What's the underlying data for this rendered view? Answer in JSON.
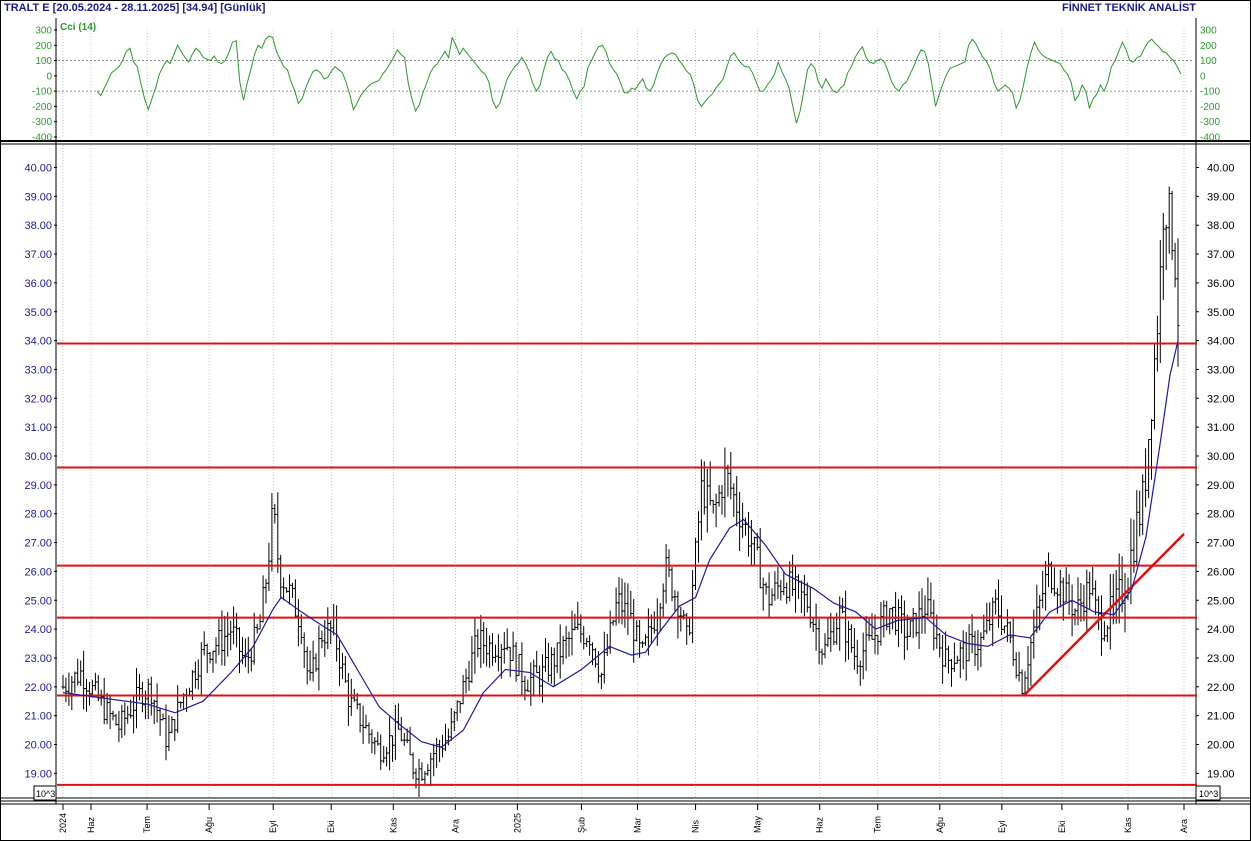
{
  "header": {
    "title": "TRALT E  [20.05.2024 - 28.11.2025]  [34.94]  [Günlük]",
    "vendor": "FİNNET TEKNİK ANALİST"
  },
  "colors": {
    "bars": "#000000",
    "ma": "#1a1aa8",
    "cci": "#2a9a2a",
    "levels": "#e01010",
    "trend": "#e01010",
    "axis_text": "#1b1b8f",
    "grid": "#9a9a9a"
  },
  "chart_data": [
    {
      "type": "line",
      "name": "cci_panel",
      "legend": "Cci (14)",
      "y_ticks": [
        "300",
        "200",
        "100",
        "0",
        "-100",
        "-200",
        "-300",
        "-400"
      ],
      "y_ticks_right": [
        "300",
        "200",
        "100",
        "0",
        "-100",
        "-200",
        "-300",
        "-400"
      ],
      "ylim": [
        -400,
        300
      ],
      "reference_lines": [
        100,
        -100
      ],
      "grid": true,
      "series": [
        {
          "values": [
            -100,
            -130,
            -80,
            -30,
            20,
            40,
            60,
            100,
            160,
            180,
            90,
            60,
            -50,
            -150,
            -220,
            -150,
            -80,
            10,
            60,
            100,
            80,
            140,
            200,
            160,
            120,
            90,
            140,
            180,
            160,
            120,
            110,
            100,
            130,
            90,
            80,
            100,
            150,
            220,
            230,
            -40,
            -160,
            -50,
            40,
            140,
            200,
            180,
            240,
            260,
            250,
            160,
            110,
            60,
            40,
            -40,
            -100,
            -180,
            -150,
            -80,
            -20,
            30,
            40,
            20,
            -20,
            -10,
            30,
            60,
            40,
            20,
            -40,
            -120,
            -220,
            -180,
            -130,
            -100,
            -70,
            -50,
            -40,
            -30,
            10,
            40,
            80,
            120,
            170,
            140,
            120,
            -50,
            -150,
            -230,
            -190,
            -110,
            -50,
            20,
            60,
            80,
            120,
            160,
            120,
            250,
            200,
            140,
            180,
            150,
            120,
            90,
            60,
            30,
            10,
            -40,
            -160,
            -210,
            -180,
            -100,
            -20,
            20,
            60,
            80,
            120,
            80,
            30,
            -50,
            -100,
            -60,
            40,
            120,
            160,
            110,
            100,
            40,
            20,
            -30,
            -100,
            -150,
            -100,
            -70,
            50,
            100,
            150,
            190,
            200,
            160,
            80,
            40,
            10,
            -50,
            -110,
            -110,
            -80,
            -90,
            -50,
            -20,
            -80,
            -100,
            -60,
            20,
            80,
            120,
            140,
            150,
            140,
            100,
            70,
            30,
            10,
            -60,
            -160,
            -200,
            -170,
            -140,
            -120,
            -80,
            -50,
            -20,
            60,
            130,
            150,
            110,
            80,
            60,
            60,
            20,
            -40,
            -100,
            -100,
            -60,
            -30,
            10,
            90,
            30,
            -20,
            -80,
            -200,
            -310,
            -230,
            -100,
            40,
            80,
            50,
            -40,
            -80,
            -20,
            -60,
            -100,
            -110,
            -80,
            -60,
            20,
            60,
            120,
            160,
            190,
            120,
            90,
            80,
            100,
            110,
            90,
            30,
            -40,
            -80,
            -100,
            -60,
            -40,
            10,
            60,
            120,
            170,
            160,
            80,
            -60,
            -200,
            -120,
            -50,
            10,
            50,
            60,
            70,
            80,
            90,
            200,
            240,
            210,
            160,
            120,
            90,
            40,
            -50,
            -100,
            -80,
            -60,
            -80,
            -110,
            -210,
            -160,
            -60,
            60,
            150,
            220,
            170,
            140,
            120,
            110,
            100,
            90,
            80,
            40,
            10,
            -40,
            -160,
            -130,
            -60,
            -100,
            -210,
            -150,
            -120,
            -60,
            -100,
            -40,
            60,
            100,
            160,
            220,
            170,
            100,
            90,
            120,
            130,
            180,
            220,
            240,
            210,
            190,
            160,
            150,
            120,
            100,
            60,
            10
          ]
        }
      ]
    },
    {
      "type": "bar",
      "name": "price_panel",
      "subtype": "ohlc-bars",
      "x_axis": {
        "start": "20.05.2024",
        "end": "28.11.2025",
        "month_labels": [
          "2024",
          "Haz",
          "Tem",
          "Ağu",
          "Eyl",
          "Eki",
          "Kas",
          "Ara",
          "2025",
          "Şub",
          "Mar",
          "Nis",
          "May",
          "Haz",
          "Tem",
          "Ağu",
          "Eyl",
          "Eki",
          "Kas",
          "Ara"
        ],
        "month_label_dates": [
          "2024-05-20",
          "2024-06-03",
          "2024-07-01",
          "2024-08-01",
          "2024-09-02",
          "2024-10-01",
          "2024-11-01",
          "2024-12-02",
          "2025-01-02",
          "2025-02-03",
          "2025-03-03",
          "2025-04-01",
          "2025-05-02",
          "2025-06-02",
          "2025-07-01",
          "2025-08-01",
          "2025-09-01",
          "2025-10-01",
          "2025-11-03",
          "2025-12-01"
        ]
      },
      "y_ticks": [
        "40.00",
        "39.00",
        "38.00",
        "37.00",
        "36.00",
        "35.00",
        "34.00",
        "33.00",
        "32.00",
        "31.00",
        "30.00",
        "29.00",
        "28.00",
        "27.00",
        "26.00",
        "25.00",
        "24.00",
        "23.00",
        "22.00",
        "21.00",
        "20.00",
        "19.00"
      ],
      "y_ticks_right": [
        "40.00",
        "39.00",
        "38.00",
        "37.00",
        "36.00",
        "35.00",
        "34.00",
        "33.00",
        "32.00",
        "31.00",
        "30.00",
        "29.00",
        "28.00",
        "27.00",
        "26.00",
        "25.00",
        "24.00",
        "23.00",
        "22.00",
        "21.00",
        "20.00",
        "19.00"
      ],
      "ylim": [
        18.45,
        40.8
      ],
      "scale_note": "10^3",
      "last_close": 34.94,
      "grid": true,
      "horizontal_levels": [
        33.9,
        29.6,
        26.2,
        24.4,
        21.7,
        18.6
      ],
      "trend_line": [
        {
          "date": "2025-09-12",
          "y": 21.7
        },
        {
          "date": "2025-12-01",
          "y": 27.3
        }
      ],
      "moving_average": [
        {
          "date": "2024-05-20",
          "y": 21.8
        },
        {
          "date": "2024-06-10",
          "y": 21.6
        },
        {
          "date": "2024-07-01",
          "y": 21.4
        },
        {
          "date": "2024-07-15",
          "y": 21.1
        },
        {
          "date": "2024-07-29",
          "y": 21.5
        },
        {
          "date": "2024-08-12",
          "y": 22.5
        },
        {
          "date": "2024-08-23",
          "y": 23.4
        },
        {
          "date": "2024-09-02",
          "y": 24.7
        },
        {
          "date": "2024-09-06",
          "y": 25.1
        },
        {
          "date": "2024-09-16",
          "y": 24.6
        },
        {
          "date": "2024-09-27",
          "y": 24.1
        },
        {
          "date": "2024-10-04",
          "y": 23.8
        },
        {
          "date": "2024-10-14",
          "y": 22.6
        },
        {
          "date": "2024-10-25",
          "y": 21.3
        },
        {
          "date": "2024-11-04",
          "y": 20.7
        },
        {
          "date": "2024-11-15",
          "y": 20.1
        },
        {
          "date": "2024-11-25",
          "y": 19.9
        },
        {
          "date": "2024-12-06",
          "y": 20.5
        },
        {
          "date": "2024-12-16",
          "y": 21.8
        },
        {
          "date": "2024-12-27",
          "y": 22.6
        },
        {
          "date": "2025-01-08",
          "y": 22.5
        },
        {
          "date": "2025-01-20",
          "y": 22.0
        },
        {
          "date": "2025-02-03",
          "y": 22.6
        },
        {
          "date": "2025-02-17",
          "y": 23.4
        },
        {
          "date": "2025-02-28",
          "y": 23.1
        },
        {
          "date": "2025-03-07",
          "y": 23.2
        },
        {
          "date": "2025-03-14",
          "y": 23.9
        },
        {
          "date": "2025-03-24",
          "y": 24.8
        },
        {
          "date": "2025-04-01",
          "y": 25.1
        },
        {
          "date": "2025-04-08",
          "y": 26.4
        },
        {
          "date": "2025-04-18",
          "y": 27.5
        },
        {
          "date": "2025-04-25",
          "y": 27.8
        },
        {
          "date": "2025-05-06",
          "y": 26.9
        },
        {
          "date": "2025-05-16",
          "y": 25.9
        },
        {
          "date": "2025-05-30",
          "y": 25.4
        },
        {
          "date": "2025-06-09",
          "y": 24.9
        },
        {
          "date": "2025-06-20",
          "y": 24.6
        },
        {
          "date": "2025-06-30",
          "y": 24.0
        },
        {
          "date": "2025-07-11",
          "y": 24.3
        },
        {
          "date": "2025-07-25",
          "y": 24.4
        },
        {
          "date": "2025-08-04",
          "y": 23.8
        },
        {
          "date": "2025-08-15",
          "y": 23.5
        },
        {
          "date": "2025-08-25",
          "y": 23.4
        },
        {
          "date": "2025-09-05",
          "y": 23.8
        },
        {
          "date": "2025-09-15",
          "y": 23.7
        },
        {
          "date": "2025-09-25",
          "y": 24.6
        },
        {
          "date": "2025-10-06",
          "y": 25.0
        },
        {
          "date": "2025-10-17",
          "y": 24.6
        },
        {
          "date": "2025-10-27",
          "y": 24.5
        },
        {
          "date": "2025-11-05",
          "y": 25.4
        },
        {
          "date": "2025-11-12",
          "y": 27.2
        },
        {
          "date": "2025-11-19",
          "y": 30.4
        },
        {
          "date": "2025-11-24",
          "y": 32.8
        },
        {
          "date": "2025-11-28",
          "y": 34.0
        }
      ],
      "price_path": [
        {
          "date": "2024-05-20",
          "y": 22.0
        },
        {
          "date": "2024-05-29",
          "y": 22.5
        },
        {
          "date": "2024-06-10",
          "y": 21.2
        },
        {
          "date": "2024-06-17",
          "y": 20.6
        },
        {
          "date": "2024-06-28",
          "y": 21.8
        },
        {
          "date": "2024-07-03",
          "y": 21.9
        },
        {
          "date": "2024-07-11",
          "y": 20.1
        },
        {
          "date": "2024-07-19",
          "y": 21.7
        },
        {
          "date": "2024-07-29",
          "y": 23.2
        },
        {
          "date": "2024-08-07",
          "y": 23.6
        },
        {
          "date": "2024-08-12",
          "y": 24.0
        },
        {
          "date": "2024-08-19",
          "y": 22.8
        },
        {
          "date": "2024-08-26",
          "y": 24.0
        },
        {
          "date": "2024-08-30",
          "y": 26.0
        },
        {
          "date": "2024-09-02",
          "y": 28.2
        },
        {
          "date": "2024-09-05",
          "y": 26.0
        },
        {
          "date": "2024-09-10",
          "y": 25.3
        },
        {
          "date": "2024-09-16",
          "y": 24.2
        },
        {
          "date": "2024-09-20",
          "y": 22.0
        },
        {
          "date": "2024-09-26",
          "y": 23.8
        },
        {
          "date": "2024-10-02",
          "y": 24.0
        },
        {
          "date": "2024-10-10",
          "y": 21.5
        },
        {
          "date": "2024-10-18",
          "y": 20.6
        },
        {
          "date": "2024-10-25",
          "y": 19.8
        },
        {
          "date": "2024-11-04",
          "y": 20.5
        },
        {
          "date": "2024-11-11",
          "y": 19.2
        },
        {
          "date": "2024-11-15",
          "y": 19.1
        },
        {
          "date": "2024-11-22",
          "y": 19.8
        },
        {
          "date": "2024-11-29",
          "y": 20.3
        },
        {
          "date": "2024-12-06",
          "y": 22.0
        },
        {
          "date": "2024-12-13",
          "y": 23.6
        },
        {
          "date": "2024-12-20",
          "y": 23.4
        },
        {
          "date": "2024-12-27",
          "y": 23.6
        },
        {
          "date": "2025-01-06",
          "y": 22.2
        },
        {
          "date": "2025-01-14",
          "y": 22.4
        },
        {
          "date": "2025-01-22",
          "y": 23.1
        },
        {
          "date": "2025-01-31",
          "y": 23.9
        },
        {
          "date": "2025-02-07",
          "y": 23.8
        },
        {
          "date": "2025-02-13",
          "y": 22.4
        },
        {
          "date": "2025-02-21",
          "y": 25.0
        },
        {
          "date": "2025-02-28",
          "y": 24.3
        },
        {
          "date": "2025-03-05",
          "y": 23.0
        },
        {
          "date": "2025-03-12",
          "y": 24.5
        },
        {
          "date": "2025-03-17",
          "y": 26.1
        },
        {
          "date": "2025-03-24",
          "y": 24.8
        },
        {
          "date": "2025-03-28",
          "y": 23.5
        },
        {
          "date": "2025-04-04",
          "y": 28.9
        },
        {
          "date": "2025-04-10",
          "y": 28.0
        },
        {
          "date": "2025-04-16",
          "y": 29.4
        },
        {
          "date": "2025-04-23",
          "y": 28.0
        },
        {
          "date": "2025-04-30",
          "y": 26.8
        },
        {
          "date": "2025-05-07",
          "y": 25.0
        },
        {
          "date": "2025-05-15",
          "y": 25.7
        },
        {
          "date": "2025-05-27",
          "y": 24.9
        },
        {
          "date": "2025-06-04",
          "y": 23.2
        },
        {
          "date": "2025-06-12",
          "y": 24.5
        },
        {
          "date": "2025-06-20",
          "y": 23.0
        },
        {
          "date": "2025-06-27",
          "y": 23.5
        },
        {
          "date": "2025-07-07",
          "y": 24.7
        },
        {
          "date": "2025-07-16",
          "y": 23.8
        },
        {
          "date": "2025-07-25",
          "y": 24.8
        },
        {
          "date": "2025-08-04",
          "y": 22.9
        },
        {
          "date": "2025-08-12",
          "y": 23.2
        },
        {
          "date": "2025-08-22",
          "y": 23.6
        },
        {
          "date": "2025-08-29",
          "y": 24.8
        },
        {
          "date": "2025-09-05",
          "y": 23.7
        },
        {
          "date": "2025-09-11",
          "y": 22.1
        },
        {
          "date": "2025-09-18",
          "y": 24.3
        },
        {
          "date": "2025-09-24",
          "y": 26.0
        },
        {
          "date": "2025-10-01",
          "y": 25.4
        },
        {
          "date": "2025-10-08",
          "y": 24.6
        },
        {
          "date": "2025-10-15",
          "y": 25.5
        },
        {
          "date": "2025-10-20",
          "y": 24.1
        },
        {
          "date": "2025-10-27",
          "y": 24.5
        },
        {
          "date": "2025-11-03",
          "y": 26.0
        },
        {
          "date": "2025-11-07",
          "y": 27.5
        },
        {
          "date": "2025-11-11",
          "y": 28.6
        },
        {
          "date": "2025-11-13",
          "y": 30.5
        },
        {
          "date": "2025-11-17",
          "y": 34.0
        },
        {
          "date": "2025-11-19",
          "y": 36.0
        },
        {
          "date": "2025-11-21",
          "y": 39.2
        },
        {
          "date": "2025-11-24",
          "y": 38.0
        },
        {
          "date": "2025-11-26",
          "y": 37.5
        },
        {
          "date": "2025-11-28",
          "y": 34.94
        }
      ]
    }
  ]
}
